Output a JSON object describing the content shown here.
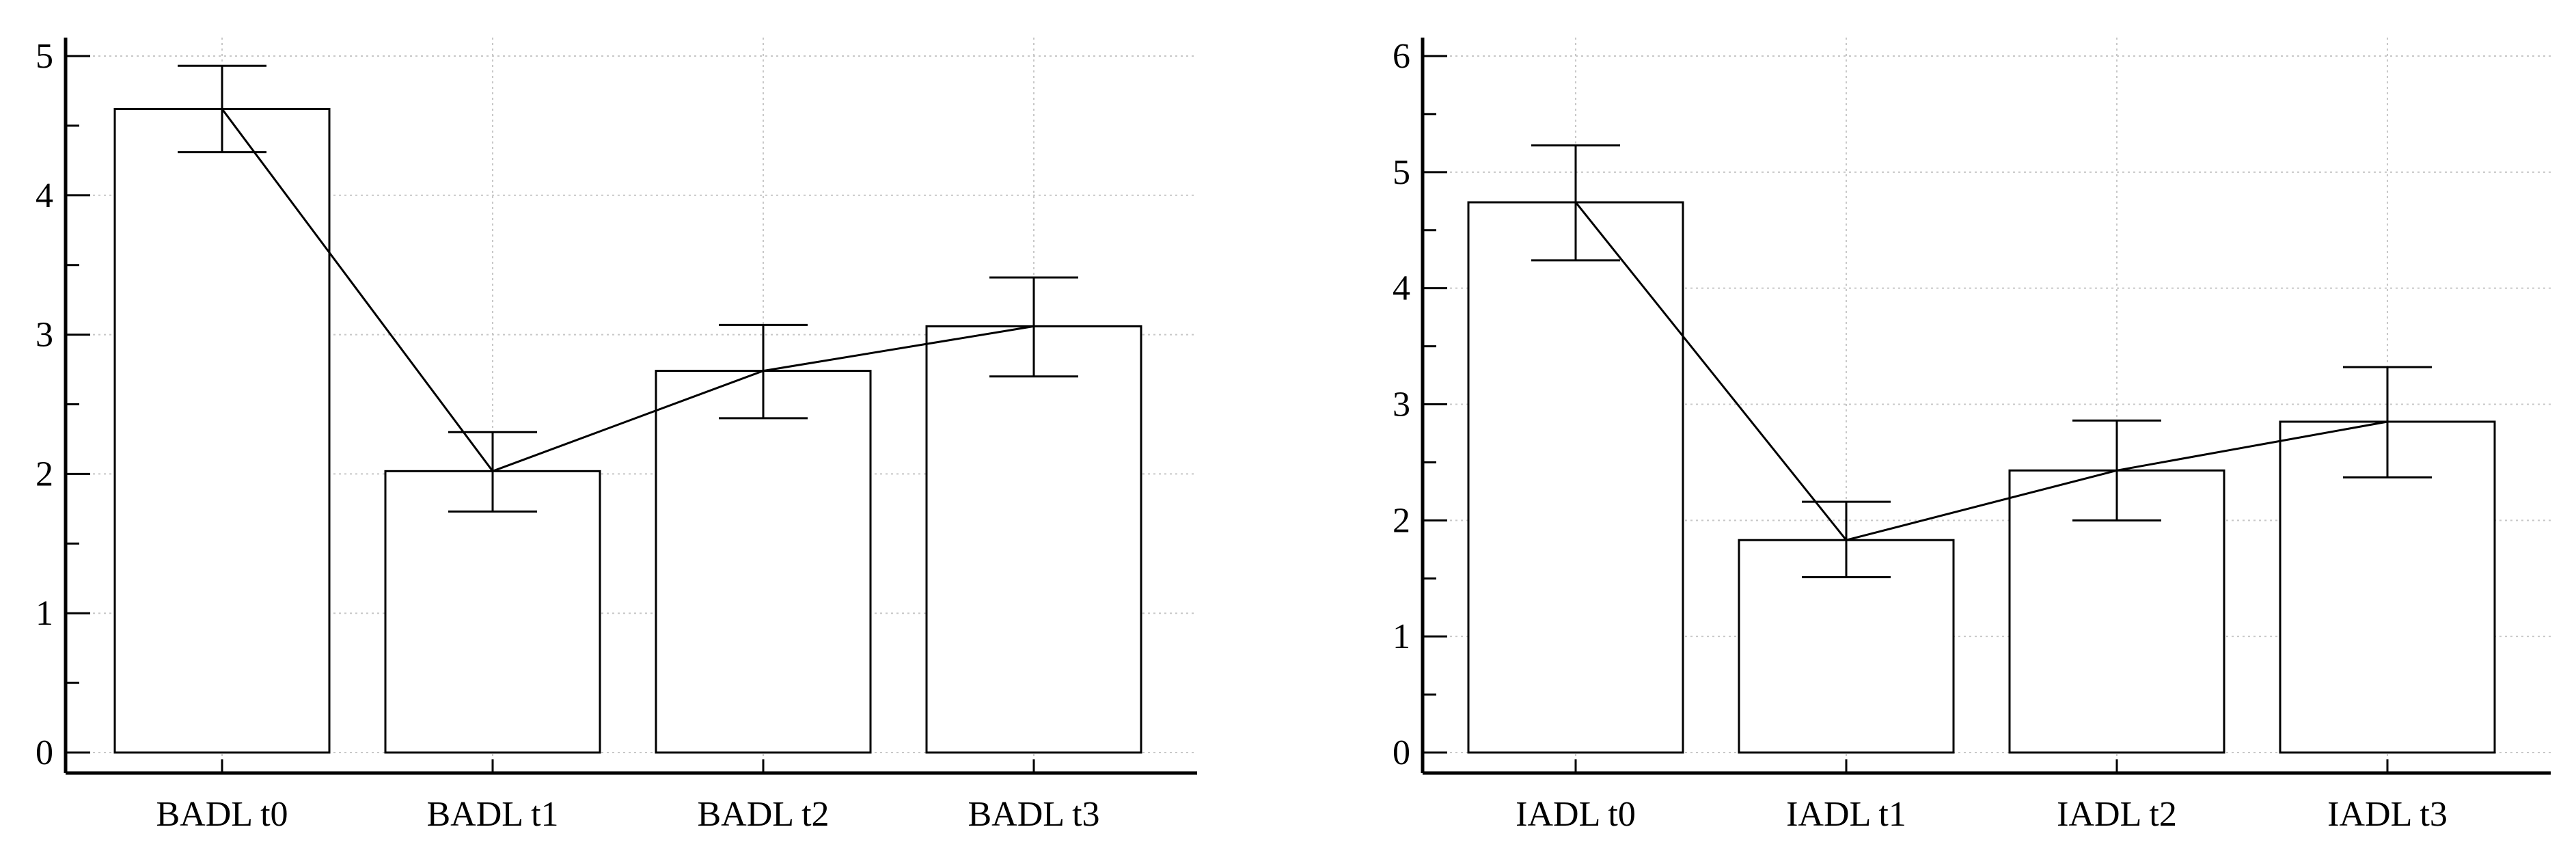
{
  "chart_data": [
    {
      "type": "bar",
      "categories": [
        "BADL t0",
        "BADL t1",
        "BADL t2",
        "BADL t3"
      ],
      "values": [
        4.62,
        2.02,
        2.74,
        3.06
      ],
      "error_low": [
        4.31,
        1.73,
        2.4,
        2.7
      ],
      "error_high": [
        4.93,
        2.3,
        3.07,
        3.41
      ],
      "connecting_line": true,
      "yticks": [
        "0",
        "1",
        "2",
        "3",
        "4",
        "5"
      ],
      "ylim": [
        0,
        5.2
      ],
      "grid": true,
      "title": "",
      "xlabel": "",
      "ylabel": ""
    },
    {
      "type": "bar",
      "categories": [
        "IADL t0",
        "IADL t1",
        "IADL t2",
        "IADL t3"
      ],
      "values": [
        4.74,
        1.83,
        2.43,
        2.85
      ],
      "error_low": [
        4.24,
        1.51,
        2.0,
        2.37
      ],
      "error_high": [
        5.23,
        2.16,
        2.86,
        3.32
      ],
      "connecting_line": true,
      "yticks": [
        "0",
        "1",
        "2",
        "3",
        "4",
        "5",
        "6"
      ],
      "ylim": [
        0,
        6.2
      ],
      "grid": true,
      "title": "",
      "xlabel": "",
      "ylabel": ""
    }
  ]
}
